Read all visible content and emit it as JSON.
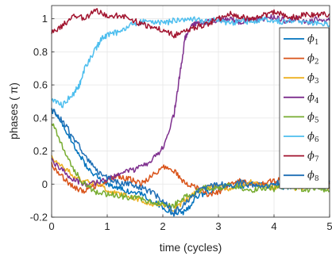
{
  "chart_data": {
    "type": "line",
    "xlabel": "time (cycles)",
    "ylabel": "phases ( π)",
    "xlim": [
      0,
      5
    ],
    "ylim": [
      -0.2,
      1.08
    ],
    "x_ticks": [
      0,
      1,
      2,
      3,
      4,
      5
    ],
    "y_ticks": [
      -0.2,
      0,
      0.2,
      0.4,
      0.6,
      0.8,
      1
    ],
    "grid": true,
    "legend_position": "right",
    "series": [
      {
        "name": "ϕ1",
        "label_base": "ϕ",
        "label_sub": "1",
        "color": "#0072BD",
        "x": [
          0,
          0.2,
          0.4,
          0.6,
          0.8,
          1.0,
          1.2,
          1.4,
          1.6,
          1.8,
          2.0,
          2.2,
          2.4,
          2.6,
          2.8,
          3.0,
          3.2,
          3.4,
          3.6,
          3.8,
          4.0,
          4.2,
          4.4,
          4.6,
          4.8,
          5.0
        ],
        "y": [
          0.45,
          0.36,
          0.24,
          0.12,
          0.05,
          0.0,
          -0.02,
          -0.05,
          -0.06,
          -0.1,
          -0.14,
          -0.18,
          -0.17,
          -0.08,
          -0.05,
          -0.02,
          -0.01,
          -0.02,
          0.0,
          -0.01,
          0.0,
          -0.02,
          -0.01,
          0.0,
          -0.01,
          -0.02
        ]
      },
      {
        "name": "ϕ2",
        "label_base": "ϕ",
        "label_sub": "2",
        "color": "#D95319",
        "x": [
          0,
          0.2,
          0.4,
          0.6,
          0.8,
          1.0,
          1.2,
          1.4,
          1.6,
          1.8,
          2.0,
          2.2,
          2.4,
          2.6,
          2.8,
          3.0,
          3.2,
          3.4,
          3.6,
          3.8,
          4.0,
          4.2,
          4.4,
          4.6,
          4.8,
          5.0
        ],
        "y": [
          0.12,
          0.04,
          -0.02,
          -0.04,
          -0.01,
          0.02,
          0.05,
          0.03,
          0.0,
          0.05,
          0.1,
          0.08,
          0.0,
          -0.02,
          -0.06,
          -0.05,
          0.0,
          0.02,
          -0.01,
          0.0,
          0.02,
          0.03,
          0.0,
          0.01,
          0.02,
          0.0
        ]
      },
      {
        "name": "ϕ3",
        "label_base": "ϕ",
        "label_sub": "3",
        "color": "#EDB120",
        "x": [
          0,
          0.2,
          0.4,
          0.6,
          0.8,
          1.0,
          1.2,
          1.4,
          1.6,
          1.8,
          2.0,
          2.2,
          2.4,
          2.6,
          2.8,
          3.0,
          3.2,
          3.4,
          3.6,
          3.8,
          4.0,
          4.2,
          4.4,
          4.6,
          4.8,
          5.0
        ],
        "y": [
          0.16,
          0.1,
          0.05,
          0.02,
          0.0,
          -0.03,
          -0.06,
          -0.08,
          -0.1,
          -0.12,
          -0.13,
          -0.15,
          -0.1,
          -0.05,
          -0.02,
          -0.01,
          -0.03,
          0.0,
          0.01,
          -0.01,
          -0.02,
          0.0,
          -0.03,
          -0.01,
          0.0,
          -0.02
        ]
      },
      {
        "name": "ϕ4",
        "label_base": "ϕ",
        "label_sub": "4",
        "color": "#7E2F8E",
        "x": [
          0,
          0.2,
          0.4,
          0.6,
          0.8,
          1.0,
          1.2,
          1.4,
          1.6,
          1.8,
          2.0,
          2.2,
          2.3,
          2.4,
          2.5,
          2.6,
          2.8,
          3.0,
          3.2,
          3.4,
          3.6,
          3.8,
          4.0,
          4.2,
          4.4,
          4.6,
          4.8,
          5.0
        ],
        "y": [
          0.14,
          0.08,
          0.03,
          0.0,
          0.01,
          0.03,
          0.05,
          0.08,
          0.1,
          0.14,
          0.22,
          0.42,
          0.65,
          0.88,
          0.95,
          0.97,
          0.98,
          0.99,
          1.0,
          0.98,
          0.99,
          1.0,
          1.01,
          0.99,
          1.0,
          0.98,
          1.0,
          0.99
        ]
      },
      {
        "name": "ϕ5",
        "label_base": "ϕ",
        "label_sub": "5",
        "color": "#77AC30",
        "x": [
          0,
          0.2,
          0.4,
          0.6,
          0.8,
          1.0,
          1.2,
          1.4,
          1.6,
          1.8,
          2.0,
          2.2,
          2.4,
          2.6,
          2.8,
          3.0,
          3.2,
          3.4,
          3.6,
          3.8,
          4.0,
          4.2,
          4.4,
          4.6,
          4.8,
          5.0
        ],
        "y": [
          0.38,
          0.22,
          0.08,
          0.0,
          -0.05,
          -0.06,
          -0.07,
          -0.08,
          -0.09,
          -0.11,
          -0.12,
          -0.13,
          -0.08,
          -0.04,
          -0.02,
          -0.03,
          -0.01,
          -0.02,
          -0.04,
          -0.02,
          -0.03,
          -0.01,
          -0.02,
          -0.04,
          -0.02,
          -0.04
        ]
      },
      {
        "name": "ϕ6",
        "label_base": "ϕ",
        "label_sub": "6",
        "color": "#4DBEEE",
        "x": [
          0,
          0.2,
          0.4,
          0.5,
          0.6,
          0.8,
          0.9,
          1.0,
          1.2,
          1.4,
          1.6,
          1.8,
          2.0,
          2.2,
          2.4,
          2.6,
          2.8,
          3.0,
          3.2,
          3.4,
          3.6,
          3.8,
          4.0,
          4.2,
          4.4,
          4.6,
          4.8,
          5.0
        ],
        "y": [
          0.52,
          0.48,
          0.55,
          0.6,
          0.7,
          0.82,
          0.88,
          0.9,
          0.92,
          0.96,
          0.98,
          0.99,
          0.97,
          0.99,
          1.0,
          1.0,
          0.98,
          1.0,
          0.97,
          0.99,
          0.98,
          1.0,
          0.99,
          0.98,
          1.0,
          0.97,
          0.98,
          0.96
        ]
      },
      {
        "name": "ϕ7",
        "label_base": "ϕ",
        "label_sub": "7",
        "color": "#A2142F",
        "x": [
          0,
          0.2,
          0.4,
          0.6,
          0.8,
          1.0,
          1.2,
          1.4,
          1.6,
          1.8,
          2.0,
          2.2,
          2.4,
          2.6,
          2.8,
          3.0,
          3.2,
          3.4,
          3.6,
          3.8,
          4.0,
          4.2,
          4.4,
          4.6,
          4.8,
          5.0
        ],
        "y": [
          0.92,
          0.96,
          1.02,
          1.0,
          1.05,
          1.01,
          1.02,
          1.0,
          0.97,
          0.95,
          0.93,
          0.9,
          0.92,
          0.95,
          0.97,
          1.0,
          1.03,
          1.01,
          1.0,
          1.02,
          1.04,
          1.02,
          1.01,
          1.03,
          1.02,
          1.03
        ]
      },
      {
        "name": "ϕ8",
        "label_base": "ϕ",
        "label_sub": "8",
        "color": "#1F6FB5",
        "x": [
          0,
          0.2,
          0.4,
          0.6,
          0.8,
          1.0,
          1.2,
          1.4,
          1.6,
          1.8,
          2.0,
          2.2,
          2.4,
          2.6,
          2.8,
          3.0,
          3.2,
          3.4,
          3.6,
          3.8,
          4.0,
          4.2,
          4.4,
          4.6,
          4.8,
          5.0
        ],
        "y": [
          0.46,
          0.38,
          0.28,
          0.17,
          0.08,
          0.04,
          0.01,
          0.0,
          -0.02,
          -0.05,
          -0.1,
          -0.17,
          -0.12,
          -0.05,
          -0.02,
          0.0,
          -0.01,
          0.01,
          0.0,
          -0.02,
          0.01,
          0.0,
          0.02,
          -0.01,
          0.0,
          0.01
        ]
      }
    ]
  }
}
